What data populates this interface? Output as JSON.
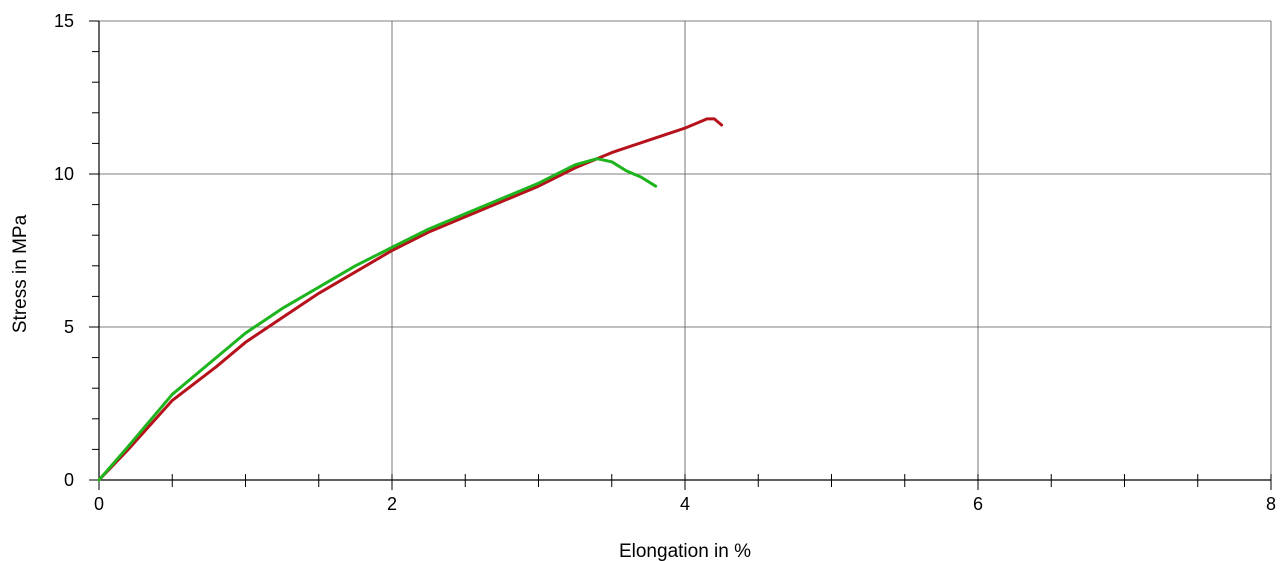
{
  "chart_data": {
    "type": "line",
    "xlabel": "Elongation in %",
    "ylabel": "Stress in MPa",
    "xlim": [
      0,
      8
    ],
    "ylim": [
      0,
      15
    ],
    "x_ticks": [
      0,
      2,
      4,
      6,
      8
    ],
    "y_ticks": [
      0,
      5,
      10,
      15
    ],
    "x_minor_step": 0.5,
    "y_minor_step": 1,
    "grid": true,
    "series": [
      {
        "color": "#b5121b",
        "points": [
          [
            0,
            0
          ],
          [
            0.2,
            1.0
          ],
          [
            0.5,
            2.6
          ],
          [
            0.8,
            3.7
          ],
          [
            1.0,
            4.5
          ],
          [
            1.25,
            5.3
          ],
          [
            1.5,
            6.1
          ],
          [
            1.75,
            6.8
          ],
          [
            2.0,
            7.5
          ],
          [
            2.25,
            8.1
          ],
          [
            2.5,
            8.6
          ],
          [
            2.75,
            9.1
          ],
          [
            3.0,
            9.6
          ],
          [
            3.25,
            10.2
          ],
          [
            3.5,
            10.7
          ],
          [
            3.75,
            11.1
          ],
          [
            4.0,
            11.5
          ],
          [
            4.15,
            11.8
          ],
          [
            4.2,
            11.8
          ],
          [
            4.25,
            11.6
          ]
        ]
      },
      {
        "color": "#1db41d",
        "points": [
          [
            0,
            0
          ],
          [
            0.2,
            1.1
          ],
          [
            0.5,
            2.8
          ],
          [
            0.8,
            4.0
          ],
          [
            1.0,
            4.8
          ],
          [
            1.25,
            5.6
          ],
          [
            1.5,
            6.3
          ],
          [
            1.75,
            7.0
          ],
          [
            2.0,
            7.6
          ],
          [
            2.25,
            8.2
          ],
          [
            2.5,
            8.7
          ],
          [
            2.75,
            9.2
          ],
          [
            3.0,
            9.7
          ],
          [
            3.25,
            10.3
          ],
          [
            3.4,
            10.5
          ],
          [
            3.5,
            10.4
          ],
          [
            3.6,
            10.1
          ],
          [
            3.7,
            9.9
          ],
          [
            3.8,
            9.6
          ]
        ]
      }
    ]
  }
}
